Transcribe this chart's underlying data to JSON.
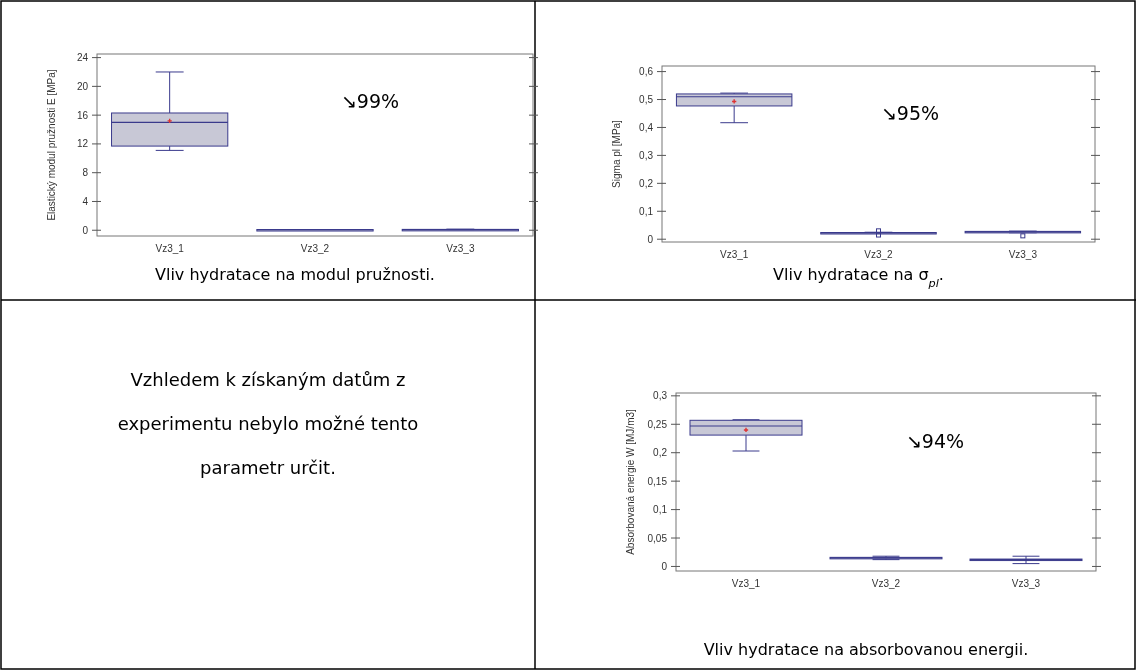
{
  "chart_data": [
    {
      "type": "box",
      "ylabel": "Elastický modul pružnosti E [MPa]",
      "categories": [
        "Vz3_1",
        "Vz3_2",
        "Vz3_3"
      ],
      "ylim": [
        -0.8,
        24.5
      ],
      "yticks": [
        0,
        4,
        8,
        12,
        16,
        20,
        24
      ],
      "annotations": [
        "↘99%",
        "Vliv hydratace na modul pružnosti."
      ],
      "series": [
        {
          "color": "#c8c8d6",
          "boxes": [
            {
              "low": 11.1,
              "q1": 11.7,
              "median": 15,
              "q3": 16.3,
              "high": 22,
              "mean": 15.2
            },
            {
              "low": 0.1,
              "q1": 0.1,
              "median": 0.1,
              "q3": 0.1,
              "high": 0.1
            },
            {
              "low": 0.05,
              "q1": 0.08,
              "median": 0.1,
              "q3": 0.12,
              "high": 0.15
            }
          ]
        }
      ]
    },
    {
      "type": "box",
      "ylabel": "Sigma pl [MPa]",
      "categories": [
        "Vz3_1",
        "Vz3_2",
        "Vz3_3"
      ],
      "ylim": [
        -0.01,
        0.62
      ],
      "yticks": [
        0,
        {
          "value": 0.1,
          "label": "0,1"
        },
        {
          "value": 0.2,
          "label": "0,2"
        },
        {
          "value": 0.3,
          "label": "0,3"
        },
        {
          "value": 0.4,
          "label": "0,4"
        },
        {
          "value": 0.5,
          "label": "0,5"
        },
        {
          "value": 0.6,
          "label": "0,6"
        }
      ],
      "annotations": [
        "↘95%",
        "Vliv hydratace na σ$_{pl}$."
      ],
      "series": [
        {
          "color": "#c8c8d6",
          "boxes": [
            {
              "low": 0.417,
              "q1": 0.477,
              "median": 0.51,
              "q3": 0.52,
              "high": 0.523,
              "mean": 0.493
            },
            {
              "low": 0.021,
              "q1": 0.022,
              "median": 0.023,
              "q3": 0.024,
              "high": 0.025,
              "outliers": [
                0.03,
                0.015
              ]
            },
            {
              "low": 0.023,
              "q1": 0.024,
              "median": 0.026,
              "q3": 0.028,
              "high": 0.029,
              "outliers": [
                0.012
              ]
            }
          ]
        }
      ]
    },
    {
      "type": "other",
      "annotations": [
        "Vzhledem k získaným datům z experimentu nebylo možné tento parametr určit."
      ]
    },
    {
      "type": "box",
      "ylabel": "Absorbovaná energie W [MJ/m3]",
      "categories": [
        "Vz3_1",
        "Vz3_2",
        "Vz3_3"
      ],
      "ylim": [
        -0.008,
        0.305
      ],
      "yticks": [
        0,
        {
          "value": 0.05,
          "label": "0,05"
        },
        {
          "value": 0.1,
          "label": "0,1"
        },
        {
          "value": 0.15,
          "label": "0,15"
        },
        {
          "value": 0.2,
          "label": "0,2"
        },
        {
          "value": 0.25,
          "label": "0,25"
        },
        {
          "value": 0.3,
          "label": "0,3"
        }
      ],
      "annotations": [
        "↘94%",
        "Vliv hydratace na absorbovanou energii."
      ],
      "series": [
        {
          "color": "#c8c8d6",
          "boxes": [
            {
              "low": 0.203,
              "q1": 0.231,
              "median": 0.247,
              "q3": 0.257,
              "high": 0.258,
              "mean": 0.24
            },
            {
              "low": 0.012,
              "q1": 0.014,
              "median": 0.015,
              "q3": 0.016,
              "high": 0.018
            },
            {
              "low": 0.005,
              "q1": 0.011,
              "median": 0.012,
              "q3": 0.013,
              "high": 0.018
            }
          ]
        }
      ]
    }
  ]
}
